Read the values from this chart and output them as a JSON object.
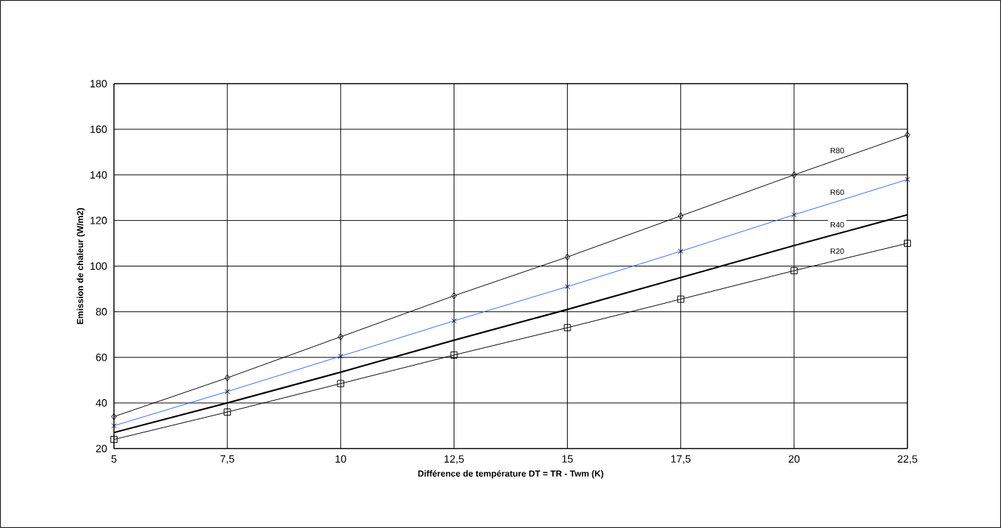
{
  "chart_data": {
    "type": "line",
    "xlabel": "Différence de température DT = TR - Twm  (K)",
    "ylabel": "Emission de chaleur (W/m2)",
    "x": [
      5,
      7.5,
      10,
      12.5,
      15,
      17.5,
      20,
      22.5
    ],
    "series": [
      {
        "name": "R80",
        "color": "#000000",
        "marker": "diamond",
        "values": [
          34,
          51,
          69,
          87,
          104,
          122,
          140,
          157.5
        ]
      },
      {
        "name": "R60",
        "color": "#3366ff",
        "marker": "cross",
        "values": [
          30,
          45,
          60.5,
          76,
          91,
          106.5,
          122.5,
          138
        ]
      },
      {
        "name": "R40",
        "color": "#000000",
        "marker": "none",
        "values": [
          27,
          40,
          53.5,
          67.5,
          81,
          95,
          109,
          122.5
        ]
      },
      {
        "name": "R20",
        "color": "#000000",
        "marker": "square",
        "values": [
          24,
          36,
          48.5,
          61,
          73,
          85.5,
          98,
          110
        ]
      }
    ],
    "xlim": [
      5,
      22.5
    ],
    "ylim": [
      20,
      180
    ],
    "xticks": [
      5,
      {
        "value": 7.5,
        "label": "7,5"
      },
      10,
      {
        "value": 12.5,
        "label": "12,5"
      },
      15,
      {
        "value": 17.5,
        "label": "17,5"
      },
      20,
      {
        "value": 22.5,
        "label": "22,5"
      }
    ],
    "yticks": [
      20,
      40,
      60,
      80,
      100,
      120,
      140,
      160,
      180
    ],
    "grid": true,
    "legend": false,
    "line_style": "solid"
  }
}
